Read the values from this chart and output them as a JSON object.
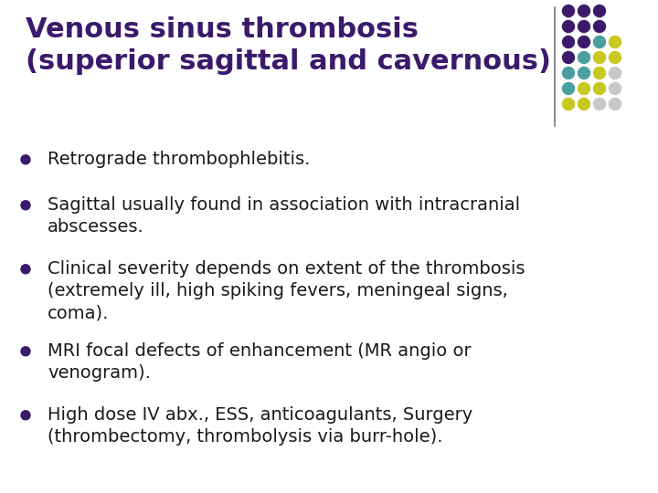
{
  "title_line1": "Venous sinus thrombosis",
  "title_line2": "(superior sagittal and cavernous)",
  "title_color": "#3b1a6b",
  "background_color": "#ffffff",
  "bullet_points": [
    "Retrograde thrombophlebitis.",
    "Sagittal usually found in association with intracranial\nabscesses.",
    "Clinical severity depends on extent of the thrombosis\n(extremely ill, high spiking fevers, meningeal signs,\ncoma).",
    "MRI focal defects of enhancement (MR angio or\nvenogram).",
    "High dose IV abx., ESS, anticoagulants, Surgery\n(thrombectomy, thrombolysis via burr-hole)."
  ],
  "bullet_color": "#3b1a6b",
  "text_color": "#1a1a1a",
  "divider_line_color": "#777777",
  "dot_grid": {
    "colors": [
      [
        "#3b1a6b",
        "#3b1a6b",
        "#3b1a6b",
        "none"
      ],
      [
        "#3b1a6b",
        "#3b1a6b",
        "#3b1a6b",
        "none"
      ],
      [
        "#3b1a6b",
        "#3b1a6b",
        "#4a9ea0",
        "#c8c820"
      ],
      [
        "#3b1a6b",
        "#4a9ea0",
        "#c8c820",
        "#c8c820"
      ],
      [
        "#4a9ea0",
        "#4a9ea0",
        "#c8c820",
        "#c8c8c8"
      ],
      [
        "#4a9ea0",
        "#c8c820",
        "#c8c820",
        "#c8c8c8"
      ],
      [
        "#c8c820",
        "#c8c820",
        "#c8c8c8",
        "#c8c8c8"
      ]
    ]
  },
  "title_fontsize": 22,
  "body_fontsize": 14
}
